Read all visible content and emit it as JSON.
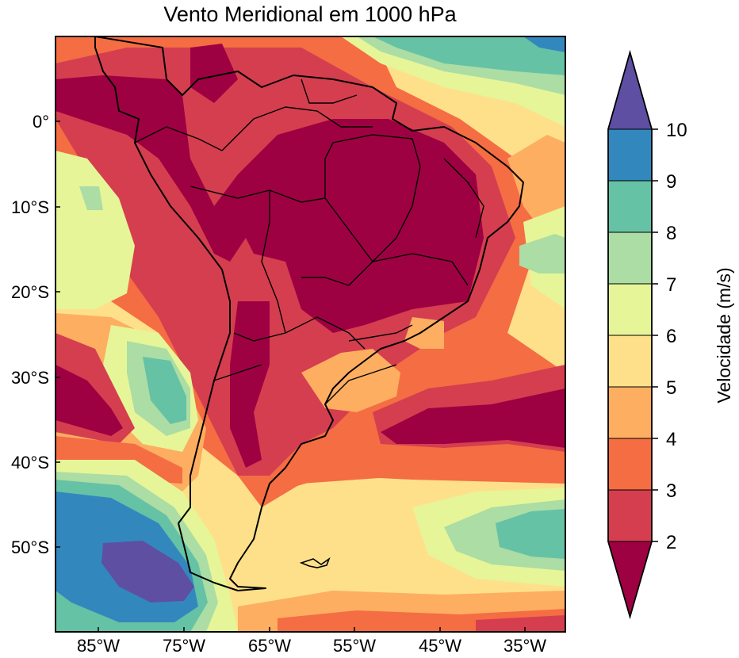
{
  "title": "Vento Meridional em 1000 hPa",
  "lat_ticks": [
    "0°",
    "10°S",
    "20°S",
    "30°S",
    "40°S",
    "50°S"
  ],
  "lon_ticks": [
    "85°W",
    "75°W",
    "65°W",
    "55°W",
    "45°W",
    "35°W"
  ],
  "colorbar": {
    "label": "Velocidade (m/s)",
    "ticks": [
      "2",
      "3",
      "4",
      "5",
      "6",
      "7",
      "8",
      "9",
      "10"
    ],
    "colors": [
      "#9e0142",
      "#d53e4f",
      "#f46d43",
      "#fdae61",
      "#fee08b",
      "#e6f598",
      "#abdda4",
      "#66c2a5",
      "#3288bd",
      "#5e4fa2"
    ]
  }
}
